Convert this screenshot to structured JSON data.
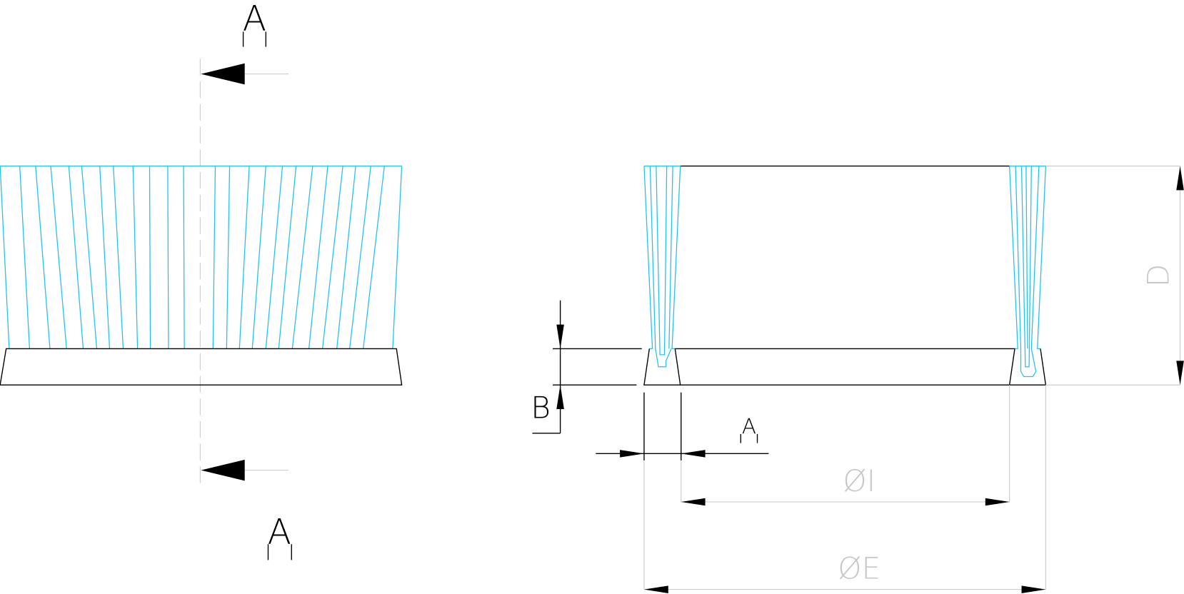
{
  "labels": {
    "section_top": "A",
    "section_bottom": "A",
    "dim_b": "B",
    "dim_a": "A",
    "dim_i": "ØI",
    "dim_e": "ØE",
    "dim_d": "D"
  }
}
